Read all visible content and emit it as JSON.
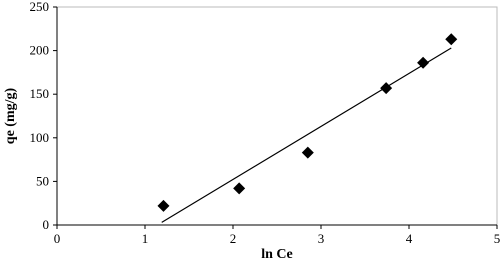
{
  "chart_data": {
    "type": "scatter",
    "xlabel": "ln Ce",
    "ylabel": "qe (mg/g)",
    "x": [
      1.21,
      2.07,
      2.85,
      3.74,
      4.16,
      4.48
    ],
    "values": [
      22,
      42,
      83,
      157,
      186,
      213
    ],
    "color": "#000000",
    "trendline": {
      "x": [
        1.19,
        4.48
      ],
      "values": [
        3,
        203
      ],
      "color": "#000000"
    },
    "xlim": [
      0,
      5
    ],
    "xticks": [
      0,
      1,
      2,
      3,
      4,
      5
    ],
    "ylim": [
      0,
      250
    ],
    "yticks": [
      0,
      50,
      100,
      150,
      200,
      250
    ],
    "grid": false
  }
}
